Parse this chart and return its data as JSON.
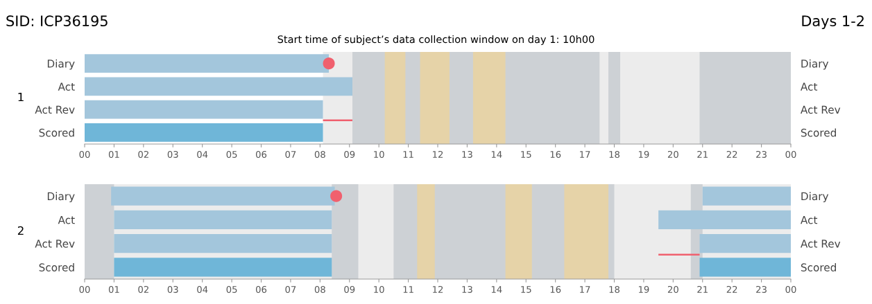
{
  "chart_data": [
    {
      "type": "bar",
      "orientation": "horizontal",
      "title": "SID: ICP36195",
      "subtitle": "Start time of subject’s data collection window on day 1: 10h00",
      "annotations": [
        "Days 1-2",
        "1"
      ],
      "categories": [
        "Diary",
        "Act",
        "Act Rev",
        "Scored"
      ],
      "series": [
        {
          "type": "bar",
          "colors": [
            "#a3c6dc",
            "#a3c6dc",
            "#a3c6dc",
            "#6fb6d8"
          ],
          "base": [
            0,
            0,
            0,
            0
          ],
          "values": [
            8.3,
            9.1,
            8.1,
            8.1
          ]
        },
        {
          "type": "scatter",
          "color": "#f0606e",
          "values": [
            8.3,
            null,
            null,
            null
          ]
        },
        {
          "type": "bar",
          "color": "#f0606e",
          "base": [
            null,
            null,
            8.1,
            null
          ],
          "values": [
            null,
            null,
            1.0,
            null
          ]
        }
      ],
      "bands": [
        {
          "axis": "x",
          "from": 8.1,
          "to": 24,
          "color": "#ececec"
        },
        {
          "axis": "x",
          "from": 9.1,
          "to": 17.5,
          "color": "#cdd1d5"
        },
        {
          "axis": "x",
          "from": 17.8,
          "to": 18.2,
          "color": "#cdd1d5"
        },
        {
          "axis": "x",
          "from": 20.9,
          "to": 24,
          "color": "#cdd1d5"
        },
        {
          "axis": "x",
          "from": 10.2,
          "to": 10.9,
          "color": "#e6d3a8"
        },
        {
          "axis": "x",
          "from": 11.4,
          "to": 12.4,
          "color": "#e6d3a8"
        },
        {
          "axis": "x",
          "from": 13.2,
          "to": 14.3,
          "color": "#e6d3a8"
        }
      ],
      "xlim": [
        0,
        24
      ],
      "xticks": [
        {
          "value": 0,
          "label": "00"
        },
        {
          "value": 1,
          "label": "01"
        },
        {
          "value": 2,
          "label": "02"
        },
        {
          "value": 3,
          "label": "03"
        },
        {
          "value": 4,
          "label": "04"
        },
        {
          "value": 5,
          "label": "05"
        },
        {
          "value": 6,
          "label": "06"
        },
        {
          "value": 7,
          "label": "07"
        },
        {
          "value": 8,
          "label": "08"
        },
        {
          "value": 9,
          "label": "09"
        },
        10,
        11,
        12,
        13,
        14,
        15,
        16,
        17,
        18,
        19,
        20,
        21,
        22,
        23,
        {
          "value": 24,
          "label": "00"
        }
      ]
    },
    {
      "type": "bar",
      "orientation": "horizontal",
      "annotations": [
        "2"
      ],
      "categories": [
        "Diary",
        "Act",
        "Act Rev",
        "Scored"
      ],
      "series": [
        {
          "type": "bar",
          "colors": [
            "#a3c6dc",
            "#a3c6dc",
            "#a3c6dc",
            "#6fb6d8"
          ],
          "base": [
            0.9,
            1.0,
            1.0,
            1.0
          ],
          "values": [
            7.6,
            7.4,
            7.4,
            7.4
          ]
        },
        {
          "type": "bar",
          "colors": [
            "#a3c6dc",
            "#a3c6dc",
            "#a3c6dc",
            "#6fb6d8"
          ],
          "base": [
            21.0,
            19.5,
            20.9,
            20.9
          ],
          "values": [
            3.0,
            4.5,
            3.1,
            3.1
          ]
        },
        {
          "type": "scatter",
          "color": "#f0606e",
          "values": [
            8.55,
            null,
            null,
            null
          ]
        },
        {
          "type": "bar",
          "color": "#f0606e",
          "base": [
            null,
            null,
            19.5,
            null
          ],
          "values": [
            null,
            null,
            1.4,
            null
          ]
        }
      ],
      "bands": [
        {
          "axis": "x",
          "from": 0,
          "to": 24,
          "color": "#ececec"
        },
        {
          "axis": "x",
          "from": 0,
          "to": 1.0,
          "color": "#cdd1d5"
        },
        {
          "axis": "x",
          "from": 8.4,
          "to": 9.3,
          "color": "#cdd1d5"
        },
        {
          "axis": "x",
          "from": 10.5,
          "to": 18.0,
          "color": "#cdd1d5"
        },
        {
          "axis": "x",
          "from": 20.6,
          "to": 21.0,
          "color": "#cdd1d5"
        },
        {
          "axis": "x",
          "from": 11.3,
          "to": 11.9,
          "color": "#e6d3a8"
        },
        {
          "axis": "x",
          "from": 14.3,
          "to": 15.2,
          "color": "#e6d3a8"
        },
        {
          "axis": "x",
          "from": 16.3,
          "to": 17.8,
          "color": "#e6d3a8"
        }
      ],
      "xlim": [
        0,
        24
      ],
      "xticks": [
        {
          "value": 0,
          "label": "00"
        },
        {
          "value": 1,
          "label": "01"
        },
        {
          "value": 2,
          "label": "02"
        },
        {
          "value": 3,
          "label": "03"
        },
        {
          "value": 4,
          "label": "04"
        },
        {
          "value": 5,
          "label": "05"
        },
        {
          "value": 6,
          "label": "06"
        },
        {
          "value": 7,
          "label": "07"
        },
        {
          "value": 8,
          "label": "08"
        },
        {
          "value": 9,
          "label": "09"
        },
        10,
        11,
        12,
        13,
        14,
        15,
        16,
        17,
        18,
        19,
        20,
        21,
        22,
        23,
        {
          "value": 24,
          "label": "00"
        }
      ]
    }
  ]
}
